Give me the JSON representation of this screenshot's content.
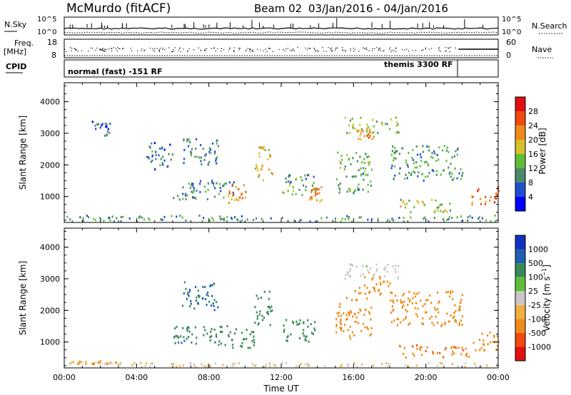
{
  "header": {
    "station": "McMurdo (fitACF)",
    "beam": "Beam 02",
    "dates": "03/Jan/2016 - 04/Jan/2016"
  },
  "top_panels": {
    "noise": {
      "left_label": "N.Sky",
      "right_label": "N.Search",
      "left_ticks": [
        "10^5",
        "10^0"
      ],
      "right_ticks": [
        "10^5",
        "10^0"
      ]
    },
    "freq": {
      "left_label_1": "Freq.",
      "left_label_2": "[MHz]",
      "right_label": "Nave",
      "left_ticks": [
        "18",
        "8"
      ],
      "right_ticks": [
        "60",
        "0"
      ]
    },
    "cpid": {
      "label": "CPID",
      "mode_1": "normal (fast) -151 RF",
      "mode_2": "themis 3300 RF"
    }
  },
  "colors": {
    "power_scale": [
      "#0000ff",
      "#2050d0",
      "#4a8a6a",
      "#5fbf3a",
      "#d8c02a",
      "#f08a1a",
      "#f04a10",
      "#e01010"
    ],
    "velocity_scale": [
      "#e01010",
      "#f04a10",
      "#f08a1a",
      "#f0b040",
      "#c8c8c8",
      "#5fbf3a",
      "#3a8a5a",
      "#2060b0",
      "#1030c0"
    ]
  },
  "chart_data": [
    {
      "type": "heatmap",
      "name": "power",
      "xlabel": "",
      "ylabel": "Slant Range [km]",
      "x_ticks": [
        "00:00",
        "04:00",
        "08:00",
        "12:00",
        "16:00",
        "20:00",
        "00:00"
      ],
      "xlim_hours": [
        0,
        24
      ],
      "y_ticks": [
        1000,
        2000,
        3000,
        4000
      ],
      "ylim": [
        180,
        4600
      ],
      "colorbar": {
        "label": "Power [dB]",
        "ticks": [
          4,
          8,
          12,
          16,
          20,
          24,
          28
        ],
        "range": [
          0,
          32
        ]
      },
      "echo_regions": [
        {
          "t": [
            0.0,
            24.0
          ],
          "r": [
            200,
            400
          ],
          "level": 10
        },
        {
          "t": [
            1.5,
            2.5
          ],
          "r": [
            2900,
            3400
          ],
          "level": 6
        },
        {
          "t": [
            4.5,
            6.0
          ],
          "r": [
            1800,
            2700
          ],
          "level": 8
        },
        {
          "t": [
            6.0,
            9.5
          ],
          "r": [
            900,
            1500
          ],
          "level": 10
        },
        {
          "t": [
            6.5,
            8.5
          ],
          "r": [
            2000,
            2900
          ],
          "level": 9
        },
        {
          "t": [
            9.0,
            10.0
          ],
          "r": [
            800,
            1400
          ],
          "level": 22
        },
        {
          "t": [
            10.5,
            11.5
          ],
          "r": [
            1500,
            2600
          ],
          "level": 18
        },
        {
          "t": [
            12.0,
            14.0
          ],
          "r": [
            1000,
            1700
          ],
          "level": 12
        },
        {
          "t": [
            13.5,
            14.3
          ],
          "r": [
            800,
            1300
          ],
          "level": 22
        },
        {
          "t": [
            15.5,
            18.5
          ],
          "r": [
            3000,
            3500
          ],
          "level": 14
        },
        {
          "t": [
            16.2,
            17.2
          ],
          "r": [
            2800,
            3200
          ],
          "level": 22
        },
        {
          "t": [
            15.0,
            17.0
          ],
          "r": [
            1100,
            2400
          ],
          "level": 12
        },
        {
          "t": [
            18.5,
            21.5
          ],
          "r": [
            500,
            900
          ],
          "level": 16
        },
        {
          "t": [
            18.0,
            22.0
          ],
          "r": [
            1500,
            2600
          ],
          "level": 11
        },
        {
          "t": [
            22.5,
            24.0
          ],
          "r": [
            700,
            1300
          ],
          "level": 24
        }
      ]
    },
    {
      "type": "heatmap",
      "name": "velocity",
      "xlabel": "Time UT",
      "ylabel": "Slant Range [km]",
      "x_ticks": [
        "00:00",
        "04:00",
        "08:00",
        "12:00",
        "16:00",
        "20:00",
        "00:00"
      ],
      "xlim_hours": [
        0,
        24
      ],
      "y_ticks": [
        1000,
        2000,
        3000,
        4000
      ],
      "ylim": [
        180,
        4600
      ],
      "colorbar": {
        "label": "Velocity [m s^-1]",
        "ticks": [
          1000,
          500,
          100,
          25,
          -25,
          -100,
          -500,
          -1000
        ]
      },
      "echo_regions": [
        {
          "t": [
            0.0,
            24.0
          ],
          "r": [
            200,
            350
          ],
          "v": -30
        },
        {
          "t": [
            0.0,
            3.0
          ],
          "r": [
            300,
            400
          ],
          "v": -120
        },
        {
          "t": [
            6.0,
            9.5
          ],
          "r": [
            900,
            1500
          ],
          "v": 400
        },
        {
          "t": [
            6.5,
            8.5
          ],
          "r": [
            2000,
            2900
          ],
          "v": 600
        },
        {
          "t": [
            9.0,
            10.5
          ],
          "r": [
            800,
            1400
          ],
          "v": 300
        },
        {
          "t": [
            10.5,
            11.5
          ],
          "r": [
            1500,
            2600
          ],
          "v": 350
        },
        {
          "t": [
            12.0,
            14.0
          ],
          "r": [
            1000,
            1700
          ],
          "v": 300
        },
        {
          "t": [
            15.0,
            17.0
          ],
          "r": [
            1100,
            2400
          ],
          "v": -300
        },
        {
          "t": [
            15.5,
            18.5
          ],
          "r": [
            3000,
            3500
          ],
          "v": 0
        },
        {
          "t": [
            16.0,
            18.0
          ],
          "r": [
            2500,
            3100
          ],
          "v": -200
        },
        {
          "t": [
            18.0,
            22.0
          ],
          "r": [
            1500,
            2600
          ],
          "v": -350
        },
        {
          "t": [
            18.5,
            22.5
          ],
          "r": [
            500,
            900
          ],
          "v": -400
        },
        {
          "t": [
            22.5,
            24.0
          ],
          "r": [
            700,
            1300
          ],
          "v": -200
        }
      ]
    }
  ]
}
